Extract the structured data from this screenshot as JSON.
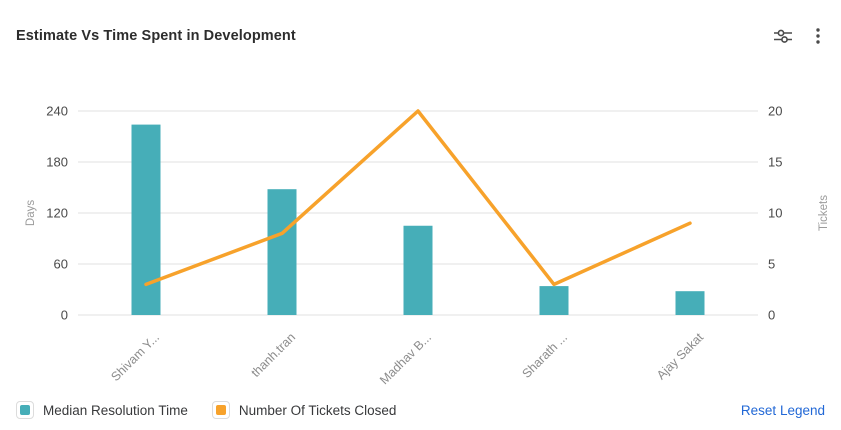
{
  "header": {
    "title": "Estimate Vs Time Spent in Development",
    "icons": [
      {
        "name": "sliders-icon"
      },
      {
        "name": "kebab-menu-icon"
      }
    ]
  },
  "chart_data": {
    "type": "bar+line",
    "title": "Estimate Vs Time Spent in Development",
    "categories": [
      "Shivam Y...",
      "thanh.tran",
      "Madhav B...",
      "Sharath ...",
      "Ajay Sakat"
    ],
    "series": [
      {
        "name": "Median Resolution Time",
        "kind": "bar",
        "axis": "left",
        "color": "#46AEB8",
        "values": [
          224,
          148,
          105,
          34,
          28
        ]
      },
      {
        "name": "Number Of Tickets Closed",
        "kind": "line",
        "axis": "right",
        "color": "#F7A22B",
        "values": [
          3,
          8,
          20,
          3,
          9
        ]
      }
    ],
    "left_axis": {
      "name": "Days",
      "min": 0,
      "max": 240,
      "ticks": [
        0,
        60,
        120,
        180,
        240
      ]
    },
    "right_axis": {
      "name": "Tickets",
      "min": 0,
      "max": 20,
      "ticks": [
        0,
        5,
        10,
        15,
        20
      ]
    },
    "grid": true,
    "legend_position": "bottom-left",
    "category_label_rotation": -45
  },
  "legend": {
    "items": [
      {
        "label": "Median Resolution Time",
        "color": "#46AEB8"
      },
      {
        "label": "Number Of Tickets Closed",
        "color": "#F7A22B"
      }
    ],
    "reset_label": "Reset Legend"
  },
  "colors": {
    "bar": "#46AEB8",
    "line": "#F7A22B",
    "link": "#2268D6",
    "grid": "#ECECEC",
    "tick_text": "#4A4A4A",
    "axis_name": "#9B9B9B",
    "category_text": "#8C8C8C",
    "title_text": "#2D2D2D",
    "icon": "#4A4A4A"
  }
}
